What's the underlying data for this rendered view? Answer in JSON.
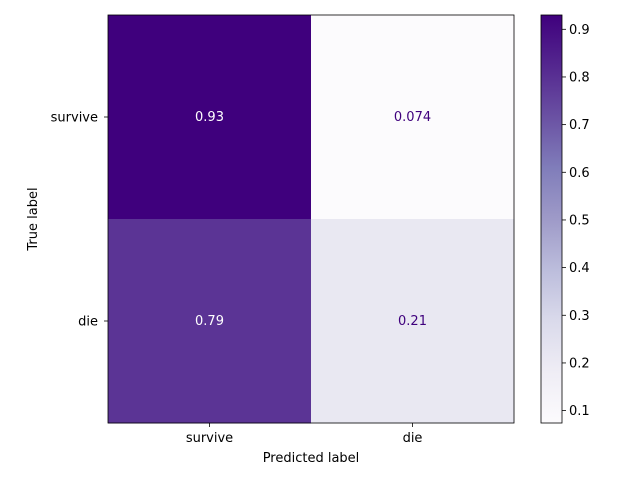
{
  "chart_data": {
    "type": "heatmap",
    "title": "",
    "xlabel": "Predicted label",
    "ylabel": "True label",
    "x_categories": [
      "survive",
      "die"
    ],
    "y_categories": [
      "survive",
      "die"
    ],
    "values": [
      [
        0.93,
        0.074
      ],
      [
        0.79,
        0.21
      ]
    ],
    "value_labels": [
      [
        "0.93",
        "0.074"
      ],
      [
        "0.79",
        "0.21"
      ]
    ],
    "colormap": "Purples",
    "colorbar": {
      "range": [
        0.074,
        0.93
      ],
      "ticks": [
        0.1,
        0.2,
        0.3,
        0.4,
        0.5,
        0.6,
        0.7,
        0.8,
        0.9
      ],
      "tick_labels": [
        "0.1",
        "0.2",
        "0.3",
        "0.4",
        "0.5",
        "0.6",
        "0.7",
        "0.8",
        "0.9"
      ]
    },
    "colors": {
      "max": "#3f007d",
      "min": "#fcfbfd",
      "text_on_dark": "#ffffff",
      "text_on_light": "#3f007d"
    }
  }
}
